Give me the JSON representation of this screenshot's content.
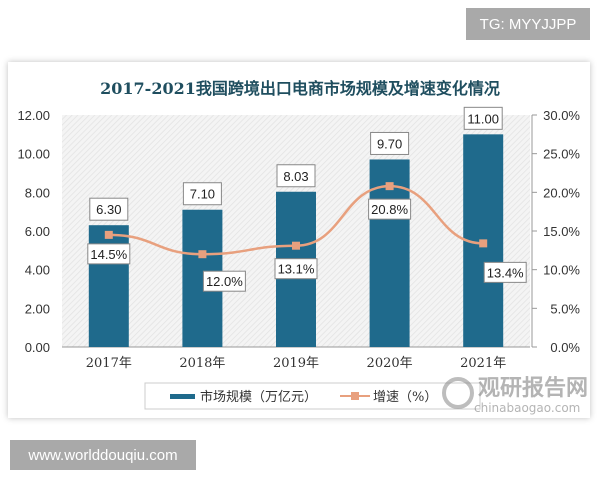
{
  "overlay": {
    "tg_label": "TG: MYYJJPP",
    "site_label": "www.worlddouqiu.com"
  },
  "watermark": {
    "name": "观研报告网",
    "site": "chinabaogao.com"
  },
  "colors": {
    "bar": "#1f6a8c",
    "line": "#e8a07e",
    "title": "#1f4e5f"
  },
  "chart_data": {
    "type": "bar+line",
    "title": "2017-2021我国跨境出口电商市场规模及增速变化情况",
    "categories": [
      "2017年",
      "2018年",
      "2019年",
      "2020年",
      "2021年"
    ],
    "series": [
      {
        "name": "市场规模（万亿元）",
        "type": "bar",
        "axis": "left",
        "values": [
          6.3,
          7.1,
          8.03,
          9.7,
          11.0
        ],
        "labels": [
          "6.30",
          "7.10",
          "8.03",
          "9.70",
          "11.00"
        ]
      },
      {
        "name": "增速（%）",
        "type": "line",
        "axis": "right",
        "values": [
          14.5,
          12.0,
          13.1,
          20.8,
          13.4
        ],
        "labels": [
          "14.5%",
          "12.0%",
          "13.1%",
          "20.8%",
          "13.4%"
        ]
      }
    ],
    "left_axis": {
      "range": [
        0,
        12
      ],
      "ticks": [
        "0.00",
        "2.00",
        "4.00",
        "6.00",
        "8.00",
        "10.00",
        "12.00"
      ]
    },
    "right_axis": {
      "range": [
        0,
        30
      ],
      "ticks": [
        "0.0%",
        "5.0%",
        "10.0%",
        "15.0%",
        "20.0%",
        "25.0%",
        "30.0%"
      ]
    },
    "legend": "bottom",
    "grid": false
  }
}
